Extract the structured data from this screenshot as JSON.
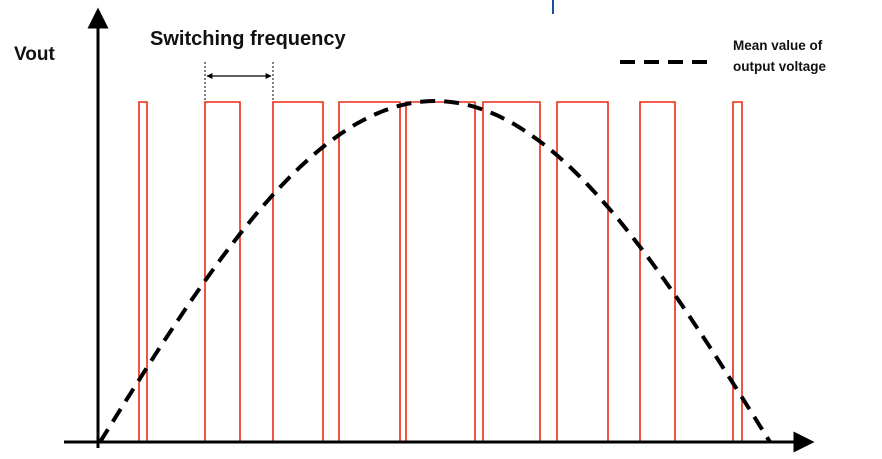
{
  "labels": {
    "y_axis": "Vout",
    "switching_frequency": "Switching frequency",
    "legend_line1": "Mean value of",
    "legend_line2": "output voltage"
  },
  "colors": {
    "pulse": "#ee2a12",
    "axis": "#000000",
    "mean_curve": "#000000",
    "background": "#ffffff",
    "top_accent": "#1a4f9c"
  },
  "diagram": {
    "pulse_count": 9,
    "pulse_duty_cycles": [
      0.15,
      0.55,
      0.75,
      0.9,
      0.98,
      0.9,
      0.75,
      0.45,
      0.12
    ],
    "mean_curve_shape": "half-sine",
    "mean_curve_style": "dashed"
  }
}
